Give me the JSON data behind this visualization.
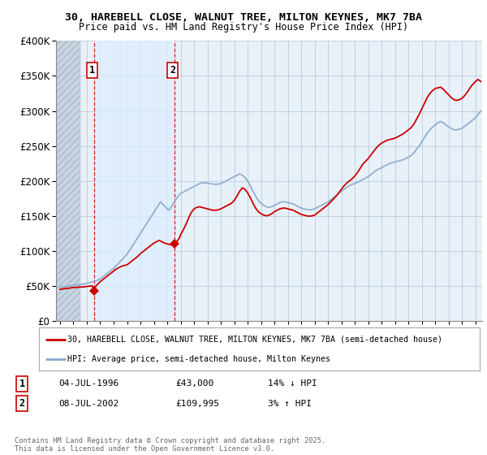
{
  "title_line1": "30, HAREBELL CLOSE, WALNUT TREE, MILTON KEYNES, MK7 7BA",
  "title_line2": "Price paid vs. HM Land Registry's House Price Index (HPI)",
  "ylim": [
    0,
    400000
  ],
  "yticks": [
    0,
    50000,
    100000,
    150000,
    200000,
    250000,
    300000,
    350000,
    400000
  ],
  "ytick_labels": [
    "£0",
    "£50K",
    "£100K",
    "£150K",
    "£200K",
    "£250K",
    "£300K",
    "£350K",
    "£400K"
  ],
  "xlim_start": 1993.7,
  "xlim_end": 2025.5,
  "hatch_end": 1995.5,
  "shade_start": 1996.55,
  "shade_end": 2002.55,
  "transaction1_year": 1996.55,
  "transaction1_price": 43000,
  "transaction2_year": 2002.55,
  "transaction2_price": 109995,
  "red_line_color": "#cc0000",
  "blue_line_color": "#88aacc",
  "hatch_facecolor": "#c8d4e0",
  "shade_color": "#ddeeff",
  "grid_color": "#bbccdd",
  "plot_bg": "#e8f0f8",
  "legend_label_red": "30, HAREBELL CLOSE, WALNUT TREE, MILTON KEYNES, MK7 7BA (semi-detached house)",
  "legend_label_blue": "HPI: Average price, semi-detached house, Milton Keynes",
  "annotation1_date": "04-JUL-1996",
  "annotation1_price": "£43,000",
  "annotation1_hpi": "14% ↓ HPI",
  "annotation2_date": "08-JUL-2002",
  "annotation2_price": "£109,995",
  "annotation2_hpi": "3% ↑ HPI",
  "footer": "Contains HM Land Registry data © Crown copyright and database right 2025.\nThis data is licensed under the Open Government Licence v3.0.",
  "hpi_data": [
    [
      1994.0,
      48000
    ],
    [
      1994.1,
      48200
    ],
    [
      1994.2,
      48500
    ],
    [
      1994.3,
      48800
    ],
    [
      1994.4,
      49000
    ],
    [
      1994.5,
      49200
    ],
    [
      1994.6,
      49500
    ],
    [
      1994.7,
      49800
    ],
    [
      1994.8,
      50000
    ],
    [
      1994.9,
      50200
    ],
    [
      1995.0,
      50500
    ],
    [
      1995.1,
      50800
    ],
    [
      1995.2,
      51000
    ],
    [
      1995.3,
      51200
    ],
    [
      1995.4,
      51500
    ],
    [
      1995.5,
      51800
    ],
    [
      1995.6,
      52000
    ],
    [
      1995.7,
      52300
    ],
    [
      1995.8,
      52600
    ],
    [
      1995.9,
      53000
    ],
    [
      1996.0,
      53500
    ],
    [
      1996.1,
      54000
    ],
    [
      1996.2,
      54500
    ],
    [
      1996.3,
      55000
    ],
    [
      1996.4,
      55500
    ],
    [
      1996.5,
      56000
    ],
    [
      1996.6,
      56500
    ],
    [
      1996.7,
      57200
    ],
    [
      1996.8,
      58000
    ],
    [
      1996.9,
      59000
    ],
    [
      1997.0,
      60000
    ],
    [
      1997.1,
      61500
    ],
    [
      1997.2,
      63000
    ],
    [
      1997.3,
      64500
    ],
    [
      1997.4,
      66000
    ],
    [
      1997.5,
      67500
    ],
    [
      1997.6,
      69000
    ],
    [
      1997.7,
      70500
    ],
    [
      1997.8,
      72000
    ],
    [
      1997.9,
      73500
    ],
    [
      1998.0,
      75000
    ],
    [
      1998.1,
      77000
    ],
    [
      1998.2,
      79000
    ],
    [
      1998.3,
      81000
    ],
    [
      1998.4,
      83000
    ],
    [
      1998.5,
      85000
    ],
    [
      1998.6,
      87000
    ],
    [
      1998.7,
      89000
    ],
    [
      1998.8,
      91000
    ],
    [
      1998.9,
      93000
    ],
    [
      1999.0,
      95000
    ],
    [
      1999.1,
      98000
    ],
    [
      1999.2,
      101000
    ],
    [
      1999.3,
      104000
    ],
    [
      1999.4,
      107000
    ],
    [
      1999.5,
      110000
    ],
    [
      1999.6,
      113000
    ],
    [
      1999.7,
      116000
    ],
    [
      1999.8,
      119000
    ],
    [
      1999.9,
      122000
    ],
    [
      2000.0,
      125000
    ],
    [
      2000.1,
      128000
    ],
    [
      2000.2,
      131000
    ],
    [
      2000.3,
      134000
    ],
    [
      2000.4,
      137000
    ],
    [
      2000.5,
      140000
    ],
    [
      2000.6,
      143000
    ],
    [
      2000.7,
      146000
    ],
    [
      2000.8,
      149000
    ],
    [
      2000.9,
      152000
    ],
    [
      2001.0,
      155000
    ],
    [
      2001.1,
      158000
    ],
    [
      2001.2,
      161000
    ],
    [
      2001.3,
      164000
    ],
    [
      2001.4,
      167000
    ],
    [
      2001.5,
      170000
    ],
    [
      2001.6,
      168000
    ],
    [
      2001.7,
      166000
    ],
    [
      2001.8,
      164000
    ],
    [
      2001.9,
      162000
    ],
    [
      2002.0,
      160000
    ],
    [
      2002.1,
      158000
    ],
    [
      2002.2,
      160000
    ],
    [
      2002.3,
      163000
    ],
    [
      2002.4,
      166000
    ],
    [
      2002.5,
      169000
    ],
    [
      2002.6,
      172000
    ],
    [
      2002.7,
      175000
    ],
    [
      2002.8,
      178000
    ],
    [
      2002.9,
      180000
    ],
    [
      2003.0,
      182000
    ],
    [
      2003.2,
      184000
    ],
    [
      2003.4,
      186000
    ],
    [
      2003.6,
      188000
    ],
    [
      2003.8,
      190000
    ],
    [
      2004.0,
      192000
    ],
    [
      2004.2,
      194000
    ],
    [
      2004.4,
      196000
    ],
    [
      2004.6,
      197000
    ],
    [
      2004.8,
      197500
    ],
    [
      2005.0,
      197000
    ],
    [
      2005.2,
      196000
    ],
    [
      2005.4,
      195500
    ],
    [
      2005.6,
      195000
    ],
    [
      2005.8,
      195500
    ],
    [
      2006.0,
      196000
    ],
    [
      2006.2,
      198000
    ],
    [
      2006.4,
      200000
    ],
    [
      2006.6,
      202000
    ],
    [
      2006.8,
      204000
    ],
    [
      2007.0,
      206000
    ],
    [
      2007.2,
      208000
    ],
    [
      2007.4,
      210000
    ],
    [
      2007.6,
      208000
    ],
    [
      2007.8,
      205000
    ],
    [
      2008.0,
      200000
    ],
    [
      2008.2,
      193000
    ],
    [
      2008.4,
      185000
    ],
    [
      2008.6,
      178000
    ],
    [
      2008.8,
      172000
    ],
    [
      2009.0,
      168000
    ],
    [
      2009.2,
      165000
    ],
    [
      2009.4,
      163000
    ],
    [
      2009.6,
      162000
    ],
    [
      2009.8,
      163000
    ],
    [
      2010.0,
      165000
    ],
    [
      2010.2,
      167000
    ],
    [
      2010.4,
      169000
    ],
    [
      2010.6,
      170000
    ],
    [
      2010.8,
      170000
    ],
    [
      2011.0,
      169000
    ],
    [
      2011.2,
      168000
    ],
    [
      2011.4,
      167000
    ],
    [
      2011.6,
      165000
    ],
    [
      2011.8,
      163000
    ],
    [
      2012.0,
      161000
    ],
    [
      2012.2,
      160000
    ],
    [
      2012.4,
      159000
    ],
    [
      2012.6,
      158500
    ],
    [
      2012.8,
      159000
    ],
    [
      2013.0,
      160000
    ],
    [
      2013.2,
      162000
    ],
    [
      2013.4,
      164000
    ],
    [
      2013.6,
      166000
    ],
    [
      2013.8,
      168000
    ],
    [
      2014.0,
      170000
    ],
    [
      2014.2,
      173000
    ],
    [
      2014.4,
      176000
    ],
    [
      2014.6,
      179000
    ],
    [
      2014.8,
      182000
    ],
    [
      2015.0,
      185000
    ],
    [
      2015.2,
      188000
    ],
    [
      2015.4,
      191000
    ],
    [
      2015.6,
      193000
    ],
    [
      2015.8,
      195000
    ],
    [
      2016.0,
      196000
    ],
    [
      2016.2,
      198000
    ],
    [
      2016.4,
      200000
    ],
    [
      2016.6,
      202000
    ],
    [
      2016.8,
      204000
    ],
    [
      2017.0,
      206000
    ],
    [
      2017.2,
      209000
    ],
    [
      2017.4,
      212000
    ],
    [
      2017.6,
      215000
    ],
    [
      2017.8,
      217000
    ],
    [
      2018.0,
      219000
    ],
    [
      2018.2,
      221000
    ],
    [
      2018.4,
      223000
    ],
    [
      2018.6,
      225000
    ],
    [
      2018.8,
      226000
    ],
    [
      2019.0,
      227000
    ],
    [
      2019.2,
      228000
    ],
    [
      2019.4,
      229000
    ],
    [
      2019.6,
      230000
    ],
    [
      2019.8,
      232000
    ],
    [
      2020.0,
      234000
    ],
    [
      2020.2,
      236000
    ],
    [
      2020.4,
      240000
    ],
    [
      2020.6,
      245000
    ],
    [
      2020.8,
      250000
    ],
    [
      2021.0,
      256000
    ],
    [
      2021.2,
      262000
    ],
    [
      2021.4,
      268000
    ],
    [
      2021.6,
      273000
    ],
    [
      2021.8,
      277000
    ],
    [
      2022.0,
      280000
    ],
    [
      2022.2,
      283000
    ],
    [
      2022.4,
      285000
    ],
    [
      2022.6,
      283000
    ],
    [
      2022.8,
      280000
    ],
    [
      2023.0,
      277000
    ],
    [
      2023.2,
      275000
    ],
    [
      2023.4,
      273000
    ],
    [
      2023.6,
      273000
    ],
    [
      2023.8,
      274000
    ],
    [
      2024.0,
      275000
    ],
    [
      2024.2,
      278000
    ],
    [
      2024.4,
      281000
    ],
    [
      2024.6,
      284000
    ],
    [
      2024.8,
      287000
    ],
    [
      2025.0,
      290000
    ],
    [
      2025.2,
      295000
    ],
    [
      2025.4,
      300000
    ]
  ],
  "red_data": [
    [
      1994.0,
      45000
    ],
    [
      1994.2,
      45500
    ],
    [
      1994.4,
      46000
    ],
    [
      1994.6,
      46500
    ],
    [
      1994.8,
      47000
    ],
    [
      1995.0,
      47500
    ],
    [
      1995.2,
      47800
    ],
    [
      1995.4,
      48000
    ],
    [
      1995.6,
      48200
    ],
    [
      1995.8,
      48500
    ],
    [
      1996.0,
      49000
    ],
    [
      1996.2,
      49500
    ],
    [
      1996.4,
      50000
    ],
    [
      1996.55,
      43000
    ],
    [
      1996.7,
      50500
    ],
    [
      1996.8,
      52000
    ],
    [
      1996.9,
      54000
    ],
    [
      1997.0,
      56000
    ],
    [
      1997.2,
      59000
    ],
    [
      1997.4,
      62000
    ],
    [
      1997.6,
      65000
    ],
    [
      1997.8,
      68000
    ],
    [
      1998.0,
      71000
    ],
    [
      1998.2,
      74000
    ],
    [
      1998.4,
      76000
    ],
    [
      1998.6,
      78000
    ],
    [
      1998.8,
      79000
    ],
    [
      1999.0,
      80000
    ],
    [
      1999.2,
      83000
    ],
    [
      1999.4,
      86000
    ],
    [
      1999.6,
      89000
    ],
    [
      1999.8,
      92000
    ],
    [
      2000.0,
      96000
    ],
    [
      2000.2,
      99000
    ],
    [
      2000.4,
      102000
    ],
    [
      2000.6,
      105000
    ],
    [
      2000.8,
      108000
    ],
    [
      2001.0,
      111000
    ],
    [
      2001.2,
      113000
    ],
    [
      2001.4,
      115000
    ],
    [
      2001.6,
      113000
    ],
    [
      2001.8,
      111000
    ],
    [
      2002.0,
      110000
    ],
    [
      2002.2,
      109000
    ],
    [
      2002.4,
      108000
    ],
    [
      2002.55,
      109995
    ],
    [
      2002.7,
      113000
    ],
    [
      2002.9,
      118000
    ],
    [
      2003.0,
      123000
    ],
    [
      2003.2,
      130000
    ],
    [
      2003.4,
      138000
    ],
    [
      2003.6,
      147000
    ],
    [
      2003.8,
      155000
    ],
    [
      2004.0,
      160000
    ],
    [
      2004.2,
      162000
    ],
    [
      2004.4,
      163000
    ],
    [
      2004.6,
      162000
    ],
    [
      2004.8,
      161000
    ],
    [
      2005.0,
      160000
    ],
    [
      2005.2,
      159000
    ],
    [
      2005.4,
      158000
    ],
    [
      2005.6,
      158000
    ],
    [
      2005.8,
      158500
    ],
    [
      2006.0,
      160000
    ],
    [
      2006.2,
      162000
    ],
    [
      2006.4,
      164000
    ],
    [
      2006.6,
      166000
    ],
    [
      2006.8,
      168000
    ],
    [
      2007.0,
      172000
    ],
    [
      2007.2,
      178000
    ],
    [
      2007.4,
      185000
    ],
    [
      2007.6,
      190000
    ],
    [
      2007.8,
      188000
    ],
    [
      2008.0,
      183000
    ],
    [
      2008.2,
      176000
    ],
    [
      2008.4,
      168000
    ],
    [
      2008.6,
      161000
    ],
    [
      2008.8,
      156000
    ],
    [
      2009.0,
      153000
    ],
    [
      2009.2,
      151000
    ],
    [
      2009.4,
      150000
    ],
    [
      2009.6,
      151000
    ],
    [
      2009.8,
      153000
    ],
    [
      2010.0,
      156000
    ],
    [
      2010.2,
      158000
    ],
    [
      2010.4,
      160000
    ],
    [
      2010.6,
      161000
    ],
    [
      2010.8,
      161000
    ],
    [
      2011.0,
      160000
    ],
    [
      2011.2,
      159000
    ],
    [
      2011.4,
      158000
    ],
    [
      2011.6,
      156000
    ],
    [
      2011.8,
      154000
    ],
    [
      2012.0,
      152000
    ],
    [
      2012.2,
      151000
    ],
    [
      2012.4,
      150000
    ],
    [
      2012.6,
      149500
    ],
    [
      2012.8,
      150000
    ],
    [
      2013.0,
      151000
    ],
    [
      2013.2,
      154000
    ],
    [
      2013.4,
      157000
    ],
    [
      2013.6,
      160000
    ],
    [
      2013.8,
      163000
    ],
    [
      2014.0,
      166000
    ],
    [
      2014.2,
      170000
    ],
    [
      2014.4,
      174000
    ],
    [
      2014.6,
      178000
    ],
    [
      2014.8,
      183000
    ],
    [
      2015.0,
      188000
    ],
    [
      2015.2,
      193000
    ],
    [
      2015.4,
      197000
    ],
    [
      2015.6,
      200000
    ],
    [
      2015.8,
      203000
    ],
    [
      2016.0,
      207000
    ],
    [
      2016.2,
      212000
    ],
    [
      2016.4,
      218000
    ],
    [
      2016.6,
      224000
    ],
    [
      2016.8,
      228000
    ],
    [
      2017.0,
      232000
    ],
    [
      2017.2,
      237000
    ],
    [
      2017.4,
      242000
    ],
    [
      2017.6,
      247000
    ],
    [
      2017.8,
      251000
    ],
    [
      2018.0,
      254000
    ],
    [
      2018.2,
      256000
    ],
    [
      2018.4,
      258000
    ],
    [
      2018.6,
      259000
    ],
    [
      2018.8,
      260000
    ],
    [
      2019.0,
      261000
    ],
    [
      2019.2,
      263000
    ],
    [
      2019.4,
      265000
    ],
    [
      2019.6,
      267000
    ],
    [
      2019.8,
      270000
    ],
    [
      2020.0,
      273000
    ],
    [
      2020.2,
      276000
    ],
    [
      2020.4,
      281000
    ],
    [
      2020.6,
      288000
    ],
    [
      2020.8,
      295000
    ],
    [
      2021.0,
      303000
    ],
    [
      2021.2,
      311000
    ],
    [
      2021.4,
      319000
    ],
    [
      2021.6,
      325000
    ],
    [
      2021.8,
      329000
    ],
    [
      2022.0,
      332000
    ],
    [
      2022.2,
      333000
    ],
    [
      2022.4,
      334000
    ],
    [
      2022.6,
      331000
    ],
    [
      2022.8,
      327000
    ],
    [
      2023.0,
      323000
    ],
    [
      2023.2,
      319000
    ],
    [
      2023.4,
      316000
    ],
    [
      2023.6,
      315000
    ],
    [
      2023.8,
      316000
    ],
    [
      2024.0,
      318000
    ],
    [
      2024.2,
      322000
    ],
    [
      2024.4,
      327000
    ],
    [
      2024.6,
      333000
    ],
    [
      2024.8,
      338000
    ],
    [
      2025.0,
      342000
    ],
    [
      2025.2,
      345000
    ],
    [
      2025.4,
      342000
    ]
  ]
}
